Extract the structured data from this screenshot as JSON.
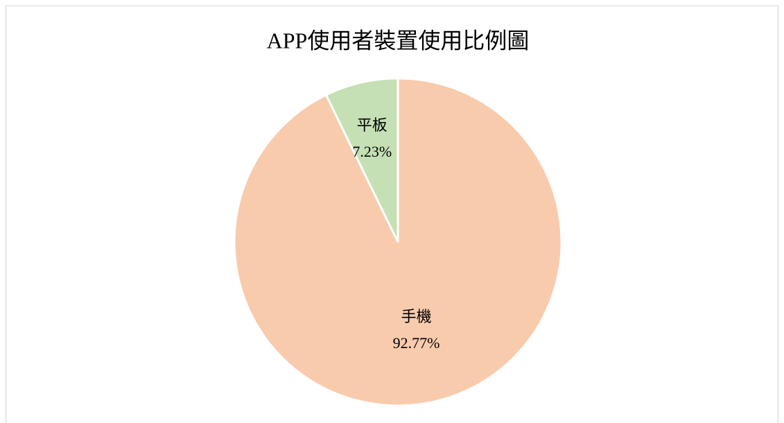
{
  "chart_data": {
    "type": "pie",
    "title": "APP使用者裝置使用比例圖",
    "categories": [
      "手機",
      "平板"
    ],
    "values": [
      92.77,
      7.23
    ],
    "value_labels": [
      "92.77%",
      "7.23%"
    ],
    "colors": [
      "#f8cbad",
      "#c5e0b4"
    ]
  }
}
